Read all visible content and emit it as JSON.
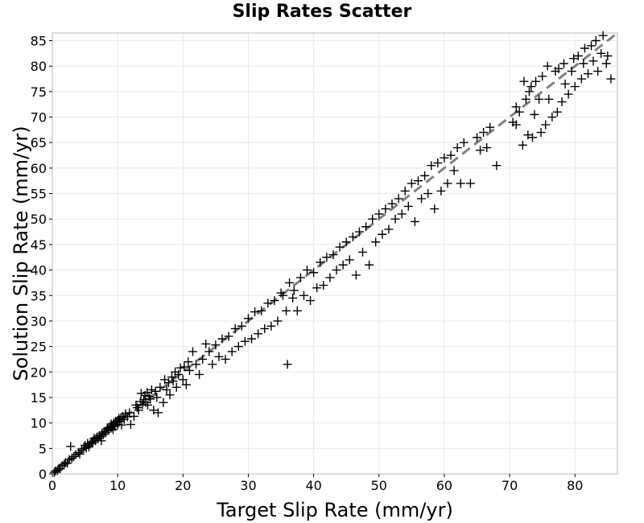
{
  "chart_data": {
    "type": "scatter",
    "title": "Slip Rates Scatter",
    "xlabel": "Target Slip Rate (mm/yr)",
    "ylabel": "Solution Slip Rate (mm/yr)",
    "xlim": [
      0,
      86.5
    ],
    "ylim": [
      0,
      86.5
    ],
    "xticks": [
      0,
      10,
      20,
      30,
      40,
      50,
      60,
      70,
      80
    ],
    "yticks": [
      0,
      5,
      10,
      15,
      20,
      25,
      30,
      35,
      40,
      45,
      50,
      55,
      60,
      65,
      70,
      75,
      80,
      85
    ],
    "grid": true,
    "marker": "plus",
    "marker_color": "#000000",
    "reference_line": {
      "style": "dashed",
      "color": "#808080",
      "from": [
        0,
        0
      ],
      "to": [
        86.5,
        86.5
      ]
    },
    "series": [
      {
        "points": [
          [
            0.3,
            0.3
          ],
          [
            0.5,
            0.6
          ],
          [
            0.8,
            0.7
          ],
          [
            1.0,
            1.1
          ],
          [
            1.2,
            1.0
          ],
          [
            1.5,
            1.6
          ],
          [
            1.8,
            1.9
          ],
          [
            2.0,
            2.2
          ],
          [
            2.3,
            2.1
          ],
          [
            2.6,
            2.8
          ],
          [
            2.8,
            5.4
          ],
          [
            3.0,
            3.1
          ],
          [
            3.3,
            3.4
          ],
          [
            3.6,
            3.8
          ],
          [
            4.0,
            4.2
          ],
          [
            4.2,
            3.9
          ],
          [
            4.5,
            4.7
          ],
          [
            4.8,
            5.0
          ],
          [
            5.0,
            5.6
          ],
          [
            5.2,
            5.1
          ],
          [
            5.4,
            6.0
          ],
          [
            5.6,
            5.3
          ],
          [
            5.8,
            5.9
          ],
          [
            6.0,
            6.3
          ],
          [
            6.2,
            6.1
          ],
          [
            6.4,
            7.0
          ],
          [
            6.6,
            6.5
          ],
          [
            6.8,
            7.2
          ],
          [
            7.0,
            6.9
          ],
          [
            7.2,
            7.5
          ],
          [
            7.4,
            7.3
          ],
          [
            7.5,
            6.5
          ],
          [
            7.6,
            8.0
          ],
          [
            7.8,
            7.7
          ],
          [
            8.0,
            8.3
          ],
          [
            8.2,
            8.1
          ],
          [
            8.4,
            8.8
          ],
          [
            8.5,
            9.0
          ],
          [
            8.6,
            8.5
          ],
          [
            8.8,
            9.2
          ],
          [
            9.0,
            9.0
          ],
          [
            9.0,
            9.8
          ],
          [
            9.2,
            9.4
          ],
          [
            9.3,
            8.7
          ],
          [
            9.4,
            10.0
          ],
          [
            9.5,
            9.6
          ],
          [
            9.6,
            9.3
          ],
          [
            9.7,
            10.3
          ],
          [
            9.8,
            10.1
          ],
          [
            10.0,
            10.5
          ],
          [
            10.0,
            9.7
          ],
          [
            10.2,
            10.9
          ],
          [
            10.3,
            10.3
          ],
          [
            10.5,
            11.0
          ],
          [
            10.6,
            9.6
          ],
          [
            10.8,
            11.3
          ],
          [
            11.0,
            10.7
          ],
          [
            11.2,
            11.8
          ],
          [
            11.5,
            11.2
          ],
          [
            11.8,
            12.0
          ],
          [
            12.0,
            9.7
          ],
          [
            12.5,
            11.3
          ],
          [
            12.8,
            13.5
          ],
          [
            13.0,
            13.0
          ],
          [
            13.2,
            12.5
          ],
          [
            13.5,
            14.2
          ],
          [
            13.6,
            15.8
          ],
          [
            13.8,
            13.6
          ],
          [
            14.0,
            14.6
          ],
          [
            14.2,
            15.4
          ],
          [
            14.3,
            14.0
          ],
          [
            14.5,
            16.0
          ],
          [
            14.6,
            13.5
          ],
          [
            14.8,
            15.2
          ],
          [
            15.0,
            14.7
          ],
          [
            15.2,
            16.5
          ],
          [
            15.5,
            12.5
          ],
          [
            15.8,
            16.2
          ],
          [
            16.0,
            15.0
          ],
          [
            16.2,
            12.0
          ],
          [
            16.5,
            17.0
          ],
          [
            17.0,
            14.0
          ],
          [
            17.2,
            18.5
          ],
          [
            17.5,
            16.5
          ],
          [
            17.8,
            17.9
          ],
          [
            18.0,
            15.5
          ],
          [
            18.3,
            19.0
          ],
          [
            18.5,
            18.2
          ],
          [
            18.8,
            20.0
          ],
          [
            19.0,
            17.0
          ],
          [
            19.3,
            19.5
          ],
          [
            19.6,
            20.8
          ],
          [
            20.0,
            18.5
          ],
          [
            20.2,
            21.0
          ],
          [
            20.5,
            17.5
          ],
          [
            20.8,
            22.0
          ],
          [
            21.0,
            20.3
          ],
          [
            21.5,
            24.0
          ],
          [
            22.0,
            21.5
          ],
          [
            22.5,
            19.5
          ],
          [
            23.0,
            22.5
          ],
          [
            23.5,
            25.5
          ],
          [
            24.0,
            24.0
          ],
          [
            24.5,
            21.5
          ],
          [
            25.0,
            25.3
          ],
          [
            25.5,
            23.0
          ],
          [
            26.0,
            26.5
          ],
          [
            26.5,
            22.5
          ],
          [
            27.0,
            27.0
          ],
          [
            27.5,
            24.0
          ],
          [
            28.0,
            28.5
          ],
          [
            28.5,
            25.0
          ],
          [
            29.0,
            29.0
          ],
          [
            29.5,
            26.0
          ],
          [
            30.0,
            30.5
          ],
          [
            30.5,
            26.5
          ],
          [
            31.0,
            31.8
          ],
          [
            31.5,
            27.5
          ],
          [
            32.0,
            32.0
          ],
          [
            32.5,
            28.5
          ],
          [
            33.0,
            33.5
          ],
          [
            33.5,
            29.0
          ],
          [
            34.0,
            34.0
          ],
          [
            34.5,
            30.0
          ],
          [
            35.0,
            35.5
          ],
          [
            35.3,
            35.0
          ],
          [
            35.8,
            32.0
          ],
          [
            36.0,
            21.5
          ],
          [
            36.3,
            37.5
          ],
          [
            36.8,
            34.5
          ],
          [
            37.0,
            36.0
          ],
          [
            37.5,
            32.0
          ],
          [
            38.0,
            38.5
          ],
          [
            38.5,
            35.0
          ],
          [
            39.0,
            40.0
          ],
          [
            39.5,
            34.0
          ],
          [
            40.0,
            39.5
          ],
          [
            40.5,
            36.5
          ],
          [
            41.0,
            41.5
          ],
          [
            41.5,
            37.0
          ],
          [
            42.0,
            42.5
          ],
          [
            42.5,
            38.5
          ],
          [
            43.0,
            43.0
          ],
          [
            43.5,
            40.0
          ],
          [
            44.0,
            44.5
          ],
          [
            44.5,
            41.0
          ],
          [
            45.0,
            45.5
          ],
          [
            45.5,
            42.0
          ],
          [
            46.0,
            46.5
          ],
          [
            46.5,
            39.0
          ],
          [
            47.0,
            47.5
          ],
          [
            47.5,
            43.5
          ],
          [
            48.0,
            48.5
          ],
          [
            48.5,
            41.0
          ],
          [
            49.0,
            50.0
          ],
          [
            49.5,
            45.5
          ],
          [
            50.0,
            51.0
          ],
          [
            50.5,
            47.0
          ],
          [
            51.0,
            52.0
          ],
          [
            51.5,
            48.0
          ],
          [
            52.0,
            53.0
          ],
          [
            52.5,
            50.0
          ],
          [
            53.0,
            54.0
          ],
          [
            53.5,
            51.0
          ],
          [
            54.0,
            55.5
          ],
          [
            54.5,
            52.5
          ],
          [
            55.0,
            57.0
          ],
          [
            55.5,
            49.5
          ],
          [
            56.0,
            57.5
          ],
          [
            56.5,
            54.0
          ],
          [
            57.0,
            58.5
          ],
          [
            57.5,
            55.0
          ],
          [
            58.0,
            60.5
          ],
          [
            58.5,
            52.0
          ],
          [
            59.0,
            61.0
          ],
          [
            59.5,
            55.5
          ],
          [
            60.0,
            62.0
          ],
          [
            60.5,
            57.0
          ],
          [
            61.0,
            62.5
          ],
          [
            61.5,
            59.5
          ],
          [
            62.0,
            64.0
          ],
          [
            62.5,
            57.0
          ],
          [
            63.0,
            65.0
          ],
          [
            64.0,
            57.0
          ],
          [
            65.0,
            66.0
          ],
          [
            65.5,
            63.5
          ],
          [
            66.0,
            67.0
          ],
          [
            66.5,
            64.0
          ],
          [
            67.0,
            68.0
          ],
          [
            68.0,
            60.5
          ],
          [
            70.5,
            69.0
          ],
          [
            71.0,
            68.5
          ],
          [
            71.0,
            72.0
          ],
          [
            71.5,
            71.0
          ],
          [
            72.0,
            64.5
          ],
          [
            72.2,
            77.0
          ],
          [
            72.5,
            73.5
          ],
          [
            72.8,
            66.5
          ],
          [
            73.0,
            75.0
          ],
          [
            73.3,
            76.0
          ],
          [
            73.5,
            66.0
          ],
          [
            73.8,
            70.5
          ],
          [
            74.0,
            77.0
          ],
          [
            74.5,
            73.5
          ],
          [
            74.8,
            67.0
          ],
          [
            75.0,
            78.0
          ],
          [
            75.5,
            68.5
          ],
          [
            75.8,
            80.0
          ],
          [
            76.0,
            73.5
          ],
          [
            76.5,
            70.0
          ],
          [
            77.0,
            79.0
          ],
          [
            77.3,
            71.0
          ],
          [
            77.5,
            79.5
          ],
          [
            78.0,
            73.0
          ],
          [
            78.3,
            80.5
          ],
          [
            78.5,
            76.5
          ],
          [
            79.0,
            74.5
          ],
          [
            79.5,
            79.0
          ],
          [
            79.8,
            81.5
          ],
          [
            80.0,
            76.0
          ],
          [
            80.5,
            82.0
          ],
          [
            81.0,
            77.5
          ],
          [
            81.3,
            80.5
          ],
          [
            81.5,
            83.5
          ],
          [
            82.0,
            78.5
          ],
          [
            82.5,
            84.0
          ],
          [
            82.8,
            81.0
          ],
          [
            83.2,
            85.0
          ],
          [
            83.5,
            79.0
          ],
          [
            84.0,
            82.5
          ],
          [
            84.3,
            86.0
          ],
          [
            84.8,
            80.5
          ],
          [
            85.0,
            82.0
          ],
          [
            85.5,
            77.5
          ]
        ]
      }
    ]
  }
}
